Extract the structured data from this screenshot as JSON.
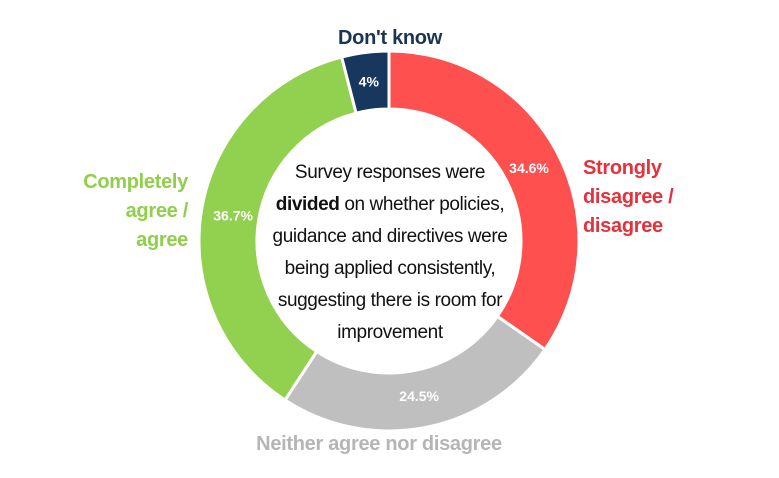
{
  "chart_data": {
    "type": "pie",
    "variant": "donut",
    "slices": [
      {
        "label": "Strongly disagree / disagree",
        "value": 34.6,
        "value_label": "34.6%",
        "color": "#ff5050"
      },
      {
        "label": "Neither agree nor disagree",
        "value": 24.5,
        "value_label": "24.5%",
        "color": "#bfbfbf"
      },
      {
        "label": "Completely agree / agree",
        "value": 36.7,
        "value_label": "36.7%",
        "color": "#92d050"
      },
      {
        "label": "Don't know",
        "value": 4,
        "value_label": "4%",
        "color": "#17375e"
      }
    ],
    "labels": {
      "dont_know": "Don't know",
      "agree_line1": "Completely",
      "agree_line2": "agree /",
      "agree_line3": "agree",
      "disagree_line1": "Strongly",
      "disagree_line2": "disagree /",
      "disagree_line3": "disagree",
      "neither": "Neither agree nor disagree"
    },
    "center_text": {
      "line1": "Survey responses were",
      "bold": "divided",
      "line2_rest": " on whether policies,",
      "line3": "guidance and directives were",
      "line4": "being applied consistently,",
      "line5": "suggesting there is room for",
      "line6": "improvement"
    }
  }
}
